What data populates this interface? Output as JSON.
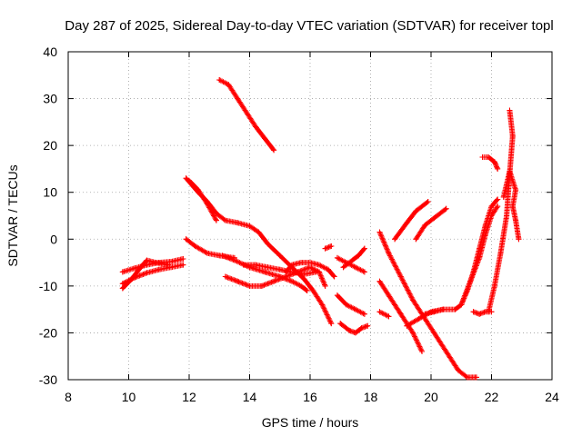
{
  "chart_data": {
    "type": "scatter",
    "title": "Day 287 of 2025, Sidereal Day-to-day VTEC variation (SDTVAR) for receiver topl",
    "xlabel": "GPS time / hours",
    "ylabel": "SDTVAR / TECUs",
    "xlim": [
      8,
      24
    ],
    "ylim": [
      -30,
      40
    ],
    "x_ticks": [
      8,
      10,
      12,
      14,
      16,
      18,
      20,
      22,
      24
    ],
    "y_ticks": [
      -30,
      -20,
      -10,
      0,
      10,
      20,
      30,
      40
    ],
    "grid": true,
    "marker": "plus",
    "color": "#ff0000",
    "series": [
      {
        "name": "arc1",
        "points": [
          [
            9.8,
            -7
          ],
          [
            10.2,
            -6.2
          ],
          [
            10.6,
            -5.5
          ],
          [
            11.0,
            -5
          ],
          [
            11.4,
            -4.8
          ],
          [
            11.8,
            -4.2
          ]
        ]
      },
      {
        "name": "arc2",
        "points": [
          [
            9.8,
            -9.5
          ],
          [
            10.2,
            -8.2
          ],
          [
            10.6,
            -7.2
          ],
          [
            11.0,
            -6.5
          ],
          [
            11.4,
            -6
          ],
          [
            11.8,
            -5.5
          ]
        ]
      },
      {
        "name": "arc3",
        "points": [
          [
            9.8,
            -10.5
          ],
          [
            10.1,
            -8.5
          ],
          [
            10.4,
            -6
          ],
          [
            10.6,
            -4.5
          ],
          [
            10.9,
            -5
          ],
          [
            11.3,
            -5.5
          ]
        ]
      },
      {
        "name": "arc4",
        "points": [
          [
            13.0,
            34
          ],
          [
            13.3,
            33
          ],
          [
            13.6,
            30
          ],
          [
            13.9,
            27
          ],
          [
            14.2,
            24
          ],
          [
            14.5,
            21.5
          ],
          [
            14.8,
            19
          ]
        ]
      },
      {
        "name": "arc5",
        "points": [
          [
            11.9,
            13
          ],
          [
            12.3,
            10
          ],
          [
            12.6,
            8
          ],
          [
            12.9,
            5.5
          ],
          [
            13.2,
            4
          ],
          [
            13.6,
            3.5
          ],
          [
            14.0,
            2.8
          ],
          [
            14.3,
            1.5
          ],
          [
            14.6,
            -1
          ],
          [
            15.0,
            -3.5
          ],
          [
            15.4,
            -6
          ],
          [
            15.8,
            -8.5
          ],
          [
            16.1,
            -11
          ],
          [
            16.4,
            -14
          ],
          [
            16.7,
            -18
          ]
        ]
      },
      {
        "name": "arc6",
        "points": [
          [
            12.0,
            12.5
          ],
          [
            12.3,
            10.5
          ],
          [
            12.6,
            7.5
          ],
          [
            12.9,
            4
          ]
        ]
      },
      {
        "name": "arc7",
        "points": [
          [
            11.9,
            0
          ],
          [
            12.2,
            -1.5
          ],
          [
            12.6,
            -3
          ],
          [
            13.0,
            -3.5
          ],
          [
            13.5,
            -4
          ]
        ]
      },
      {
        "name": "arc8",
        "points": [
          [
            13.1,
            -3.5
          ],
          [
            13.5,
            -4.5
          ],
          [
            14.0,
            -6
          ],
          [
            14.5,
            -7
          ],
          [
            15.0,
            -8
          ],
          [
            15.4,
            -9
          ],
          [
            15.7,
            -10
          ],
          [
            15.9,
            -11
          ]
        ]
      },
      {
        "name": "arc9",
        "points": [
          [
            13.2,
            -8
          ],
          [
            13.6,
            -9
          ],
          [
            14.0,
            -10
          ],
          [
            14.4,
            -10
          ],
          [
            14.8,
            -9
          ],
          [
            15.2,
            -8
          ],
          [
            15.6,
            -7
          ],
          [
            16.0,
            -6
          ],
          [
            16.3,
            -7
          ],
          [
            16.5,
            -10
          ]
        ]
      },
      {
        "name": "arc10",
        "points": [
          [
            13.8,
            -5.5
          ],
          [
            14.2,
            -5.5
          ],
          [
            14.6,
            -6
          ],
          [
            15.0,
            -6.5
          ],
          [
            15.4,
            -7
          ],
          [
            15.8,
            -7.5
          ],
          [
            16.2,
            -7
          ]
        ]
      },
      {
        "name": "arc11",
        "points": [
          [
            15.2,
            -7
          ],
          [
            15.4,
            -5.5
          ],
          [
            15.7,
            -5
          ],
          [
            16.0,
            -5
          ],
          [
            16.3,
            -5.5
          ],
          [
            16.6,
            -6.5
          ],
          [
            16.8,
            -8
          ]
        ]
      },
      {
        "name": "arc12",
        "points": [
          [
            16.5,
            -2
          ],
          [
            16.7,
            -1.5
          ]
        ]
      },
      {
        "name": "arc13",
        "points": [
          [
            16.9,
            -4
          ],
          [
            17.2,
            -5
          ],
          [
            17.5,
            -6
          ],
          [
            17.8,
            -7
          ]
        ]
      },
      {
        "name": "arc14",
        "points": [
          [
            17.1,
            -6
          ],
          [
            17.4,
            -4.5
          ],
          [
            17.6,
            -3.5
          ],
          [
            17.8,
            -2
          ]
        ]
      },
      {
        "name": "arc15",
        "points": [
          [
            16.9,
            -12
          ],
          [
            17.2,
            -14
          ],
          [
            17.5,
            -15
          ],
          [
            17.8,
            -16
          ]
        ]
      },
      {
        "name": "arc16",
        "points": [
          [
            17.0,
            -18
          ],
          [
            17.3,
            -19.5
          ],
          [
            17.5,
            -20
          ],
          [
            17.7,
            -19
          ],
          [
            17.9,
            -18.5
          ]
        ]
      },
      {
        "name": "arc17",
        "points": [
          [
            18.3,
            -15.5
          ],
          [
            18.6,
            -16.5
          ]
        ]
      },
      {
        "name": "arc18",
        "points": [
          [
            18.3,
            1.5
          ],
          [
            18.6,
            -3
          ],
          [
            19.0,
            -8
          ],
          [
            19.4,
            -13
          ],
          [
            19.8,
            -17
          ],
          [
            20.1,
            -20
          ],
          [
            20.5,
            -24
          ],
          [
            20.9,
            -28
          ],
          [
            21.2,
            -29.5
          ],
          [
            21.5,
            -29.5
          ]
        ]
      },
      {
        "name": "arc19",
        "points": [
          [
            18.3,
            -9
          ],
          [
            18.6,
            -12
          ],
          [
            19.0,
            -16
          ],
          [
            19.4,
            -20
          ],
          [
            19.7,
            -24
          ]
        ]
      },
      {
        "name": "arc20",
        "points": [
          [
            18.8,
            0
          ],
          [
            19.2,
            3.5
          ],
          [
            19.5,
            6
          ],
          [
            19.9,
            8
          ]
        ]
      },
      {
        "name": "arc21",
        "points": [
          [
            19.5,
            0
          ],
          [
            19.8,
            3
          ],
          [
            20.1,
            4.5
          ],
          [
            20.5,
            6.5
          ]
        ]
      },
      {
        "name": "arc22",
        "points": [
          [
            19.2,
            -18.5
          ],
          [
            19.6,
            -17
          ],
          [
            20.0,
            -15.5
          ],
          [
            20.4,
            -15
          ],
          [
            20.8,
            -15
          ],
          [
            21.0,
            -14
          ],
          [
            21.2,
            -11
          ],
          [
            21.4,
            -7
          ],
          [
            21.6,
            -2
          ],
          [
            21.8,
            3
          ],
          [
            22.0,
            7
          ],
          [
            22.2,
            8.5
          ]
        ]
      },
      {
        "name": "arc23",
        "points": [
          [
            19.8,
            -16
          ],
          [
            20.1,
            -15.5
          ],
          [
            20.4,
            -15
          ]
        ]
      },
      {
        "name": "arc24",
        "points": [
          [
            21.0,
            -14
          ],
          [
            21.3,
            -9
          ],
          [
            21.6,
            -4
          ],
          [
            21.8,
            1
          ],
          [
            22.0,
            5
          ],
          [
            22.2,
            7
          ]
        ]
      },
      {
        "name": "arc25",
        "points": [
          [
            21.7,
            17.5
          ],
          [
            21.9,
            17.5
          ],
          [
            22.1,
            16.5
          ],
          [
            22.2,
            15
          ]
        ]
      },
      {
        "name": "arc26",
        "points": [
          [
            21.9,
            -15.5
          ],
          [
            22.1,
            -10
          ],
          [
            22.3,
            -3
          ],
          [
            22.5,
            5
          ],
          [
            22.6,
            14
          ],
          [
            22.7,
            22
          ],
          [
            22.6,
            27.5
          ]
        ]
      },
      {
        "name": "arc27",
        "points": [
          [
            21.4,
            -15.5
          ],
          [
            21.6,
            -16
          ],
          [
            21.8,
            -15.5
          ],
          [
            22.0,
            -15.5
          ]
        ]
      },
      {
        "name": "arc28",
        "points": [
          [
            22.4,
            9
          ],
          [
            22.6,
            14.5
          ],
          [
            22.8,
            10.5
          ],
          [
            22.7,
            7
          ],
          [
            22.8,
            4
          ],
          [
            22.9,
            0
          ]
        ]
      }
    ]
  }
}
